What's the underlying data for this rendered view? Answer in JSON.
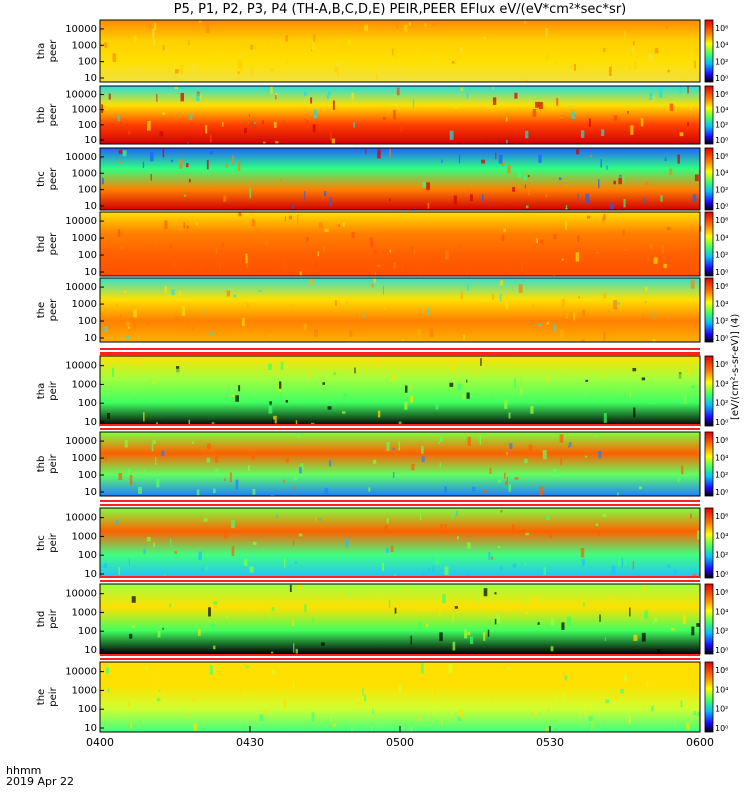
{
  "title": "P5, P1, P2, P3, P4 (TH-A,B,C,D,E) PEIR,PEER EFlux eV/(eV*cm²*sec*sr)",
  "footer": {
    "hhmm": "hhmm",
    "date": "2019 Apr 22"
  },
  "colorbar_label": "[eV/(cm²-s-sr-eV)] (4)",
  "colors": {
    "black": "#000000",
    "blue": "#0000ff",
    "cyan": "#00ffff",
    "green": "#30ff30",
    "yellow": "#ffff00",
    "orange": "#ff8000",
    "red": "#ff0000",
    "darkred": "#c00000"
  },
  "chart_data": {
    "type": "heatmap",
    "x_ticks": [
      "0400",
      "0430",
      "0500",
      "0530",
      "0600"
    ],
    "y_ticks": [
      "10",
      "100",
      "1000",
      "10000"
    ],
    "panels": [
      {
        "label_top": "tha",
        "label_bottom": "peer",
        "cbar": [
          "10⁶",
          "10⁴",
          "10²",
          "10⁰"
        ],
        "bg": [
          "#ff8c00",
          "#ffd000",
          "#ffe000",
          "#f0e040"
        ],
        "band": "high"
      },
      {
        "label_top": "thb",
        "label_bottom": "peer",
        "cbar": [
          "10⁶",
          "10⁴",
          "10²",
          "10⁰"
        ],
        "bg": [
          "#20e0e0",
          "#ffe000",
          "#ff4000",
          "#d00000"
        ],
        "band": "mid"
      },
      {
        "label_top": "thc",
        "label_bottom": "peer",
        "cbar": [
          "10⁶",
          "10⁴",
          "10²",
          "10⁰"
        ],
        "bg": [
          "#2060ff",
          "#30ff80",
          "#ff8000",
          "#d00000"
        ],
        "band": "mid"
      },
      {
        "label_top": "thd",
        "label_bottom": "peer",
        "cbar": [
          "10⁶",
          "10⁴",
          "10²",
          "10⁰"
        ],
        "bg": [
          "#ffe000",
          "#ff8000",
          "#ff6000",
          "#ff5000"
        ],
        "band": "high"
      },
      {
        "label_top": "the",
        "label_bottom": "peer",
        "cbar": [
          "10⁶",
          "10⁴",
          "10²",
          "10⁰"
        ],
        "bg": [
          "#30e0d0",
          "#ffe000",
          "#ff8000",
          "#ffb000"
        ],
        "band": "mid"
      },
      {
        "label_top": "tha",
        "label_bottom": "peir",
        "cbar": [
          "10⁶",
          "10⁴",
          "10²",
          "10⁰"
        ],
        "bg": [
          "#ffe000",
          "#a0ff40",
          "#40ff60",
          "#000000"
        ],
        "band": "low"
      },
      {
        "label_top": "thb",
        "label_bottom": "peir",
        "cbar": [
          "10⁶",
          "10⁴",
          "10²",
          "10⁰"
        ],
        "bg": [
          "#80ff40",
          "#ff6000",
          "#60ff60",
          "#2080ff"
        ],
        "band": "mid"
      },
      {
        "label_top": "thc",
        "label_bottom": "peir",
        "cbar": [
          "10⁶",
          "10⁴",
          "10²",
          "10⁰"
        ],
        "bg": [
          "#80ff40",
          "#ff6000",
          "#40ff80",
          "#20c0ff"
        ],
        "band": "mid"
      },
      {
        "label_top": "thd",
        "label_bottom": "peir",
        "cbar": [
          "10⁶",
          "10⁴",
          "10²",
          "10⁰"
        ],
        "bg": [
          "#a0ff40",
          "#ffe000",
          "#40ff60",
          "#000000"
        ],
        "band": "low"
      },
      {
        "label_top": "the",
        "label_bottom": "peir",
        "cbar": [
          "10⁶",
          "10⁴",
          "10²",
          "10⁰"
        ],
        "bg": [
          "#ffe000",
          "#ffe000",
          "#d0ff30",
          "#40ff80"
        ],
        "band": "mid"
      }
    ]
  }
}
